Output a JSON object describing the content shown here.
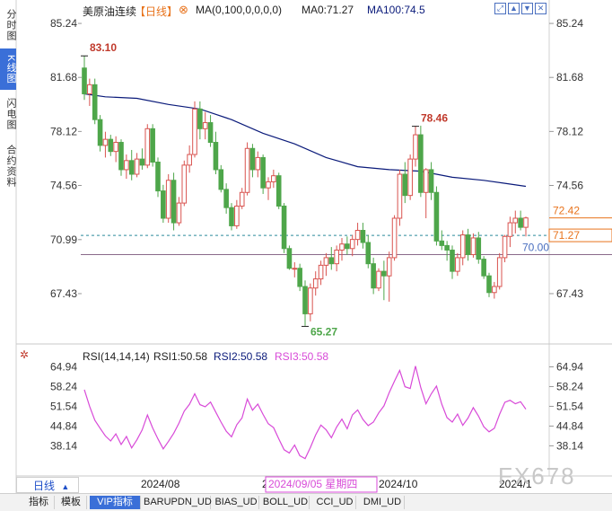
{
  "side_tabs": [
    "分时图",
    "K线图",
    "闪电图",
    "合约资料"
  ],
  "header": {
    "symbol": "美原油连续",
    "period_tag": "【日线】",
    "settings_glyph": "⊗",
    "ma_params": "MA(0,100,0,0,0,0)",
    "ma0": "MA0:71.27",
    "ma100": "MA100:74.5",
    "ma100_color": "#0a1a7a"
  },
  "rsi_header": {
    "params": "RSI(14,14,14)",
    "rsi1": "RSI1:50.58",
    "rsi2": "RSI2:50.58",
    "rsi3": "RSI3:50.58",
    "rsi3_color": "#d84ad8"
  },
  "price_axis": {
    "labels": [
      "85.24",
      "81.68",
      "78.12",
      "74.56",
      "70.99",
      "67.43"
    ],
    "right_labels": [
      "85.24",
      "81.68",
      "78.12",
      "74.56",
      "67.43"
    ]
  },
  "rsi_axis": {
    "labels": [
      "64.94",
      "58.24",
      "51.54",
      "44.84",
      "38.14"
    ]
  },
  "price_tags": {
    "last": "72.42",
    "ma0": "71.27",
    "ref": "70.00",
    "last_color": "#e8731c"
  },
  "annotations": {
    "high1": "83.10",
    "high2": "78.46",
    "low1": "65.27"
  },
  "x_axis": {
    "labels": [
      "2024/08",
      "2024/10",
      "2024/1"
    ],
    "cursor_label": "2024/09/05 星期四",
    "left_fragment": "2"
  },
  "toolbar": {
    "period_label": "日线",
    "items": [
      "指标",
      "模板",
      "VIP指标",
      "BARUPDN_UD",
      "BIAS_UD",
      "BOLL_UD",
      "CCI_UD",
      "DMI_UD"
    ]
  },
  "watermark": "FX678",
  "colors": {
    "up": "#d9534f",
    "down": "#4ea64a",
    "ma100": "#0a1a7a",
    "rsi": "#d84ad8",
    "ma0_line": "#2b8a9a"
  },
  "chart_data": {
    "type": "candlestick",
    "ylim": [
      65.0,
      85.6
    ],
    "candles": [
      [
        82.3,
        83.1,
        80.2,
        80.6
      ],
      [
        80.6,
        81.6,
        79.8,
        81.2
      ],
      [
        81.2,
        81.6,
        78.6,
        78.9
      ],
      [
        78.9,
        79.2,
        76.8,
        77.2
      ],
      [
        77.2,
        78.1,
        76.4,
        77.6
      ],
      [
        77.6,
        77.9,
        76.5,
        76.8
      ],
      [
        76.8,
        77.8,
        76.1,
        77.4
      ],
      [
        77.4,
        77.6,
        75.2,
        75.6
      ],
      [
        75.6,
        76.6,
        75.0,
        76.2
      ],
      [
        76.2,
        76.9,
        74.9,
        75.3
      ],
      [
        75.3,
        76.7,
        75.1,
        76.3
      ],
      [
        76.3,
        77.0,
        75.6,
        75.9
      ],
      [
        75.9,
        78.6,
        75.7,
        78.3
      ],
      [
        78.3,
        78.6,
        75.8,
        76.1
      ],
      [
        76.1,
        76.4,
        73.8,
        74.2
      ],
      [
        74.2,
        74.6,
        72.1,
        72.4
      ],
      [
        72.4,
        75.3,
        72.1,
        74.9
      ],
      [
        74.9,
        75.4,
        71.6,
        72.1
      ],
      [
        72.1,
        73.8,
        71.9,
        73.4
      ],
      [
        73.4,
        76.2,
        73.2,
        75.9
      ],
      [
        75.9,
        77.2,
        75.4,
        76.6
      ],
      [
        76.6,
        80.1,
        76.4,
        79.6
      ],
      [
        79.6,
        80.1,
        77.6,
        78.3
      ],
      [
        78.3,
        79.4,
        77.6,
        78.7
      ],
      [
        78.7,
        79.2,
        77.1,
        77.4
      ],
      [
        77.4,
        78.1,
        75.3,
        75.6
      ],
      [
        75.6,
        75.9,
        74.1,
        74.3
      ],
      [
        74.3,
        74.7,
        72.7,
        73.1
      ],
      [
        73.1,
        73.4,
        71.6,
        71.9
      ],
      [
        71.9,
        73.6,
        71.7,
        73.2
      ],
      [
        73.2,
        74.4,
        73.0,
        74.1
      ],
      [
        74.1,
        77.4,
        73.9,
        77.0
      ],
      [
        77.0,
        77.3,
        75.1,
        75.6
      ],
      [
        75.6,
        76.8,
        75.1,
        76.4
      ],
      [
        76.4,
        76.6,
        74.0,
        74.4
      ],
      [
        74.4,
        75.1,
        73.6,
        74.8
      ],
      [
        74.8,
        75.6,
        74.4,
        75.2
      ],
      [
        75.2,
        75.4,
        73.0,
        73.2
      ],
      [
        73.2,
        73.4,
        70.1,
        70.4
      ],
      [
        70.4,
        70.6,
        69.0,
        69.1
      ],
      [
        69.1,
        69.5,
        68.5,
        69.1
      ],
      [
        69.1,
        69.4,
        67.6,
        67.9
      ],
      [
        67.9,
        68.3,
        65.3,
        66.1
      ],
      [
        66.1,
        68.1,
        65.6,
        67.8
      ],
      [
        67.8,
        68.9,
        67.3,
        68.4
      ],
      [
        68.4,
        69.6,
        68.0,
        69.3
      ],
      [
        69.3,
        70.1,
        68.6,
        69.8
      ],
      [
        69.8,
        70.5,
        69.0,
        69.4
      ],
      [
        69.4,
        70.6,
        68.9,
        70.3
      ],
      [
        70.3,
        71.1,
        69.6,
        70.7
      ],
      [
        70.7,
        71.2,
        70.0,
        70.4
      ],
      [
        70.4,
        71.3,
        69.9,
        71.0
      ],
      [
        71.0,
        72.1,
        70.6,
        71.6
      ],
      [
        71.6,
        72.1,
        70.4,
        70.8
      ],
      [
        70.8,
        71.3,
        69.1,
        69.4
      ],
      [
        69.4,
        69.8,
        67.4,
        67.8
      ],
      [
        67.8,
        69.1,
        67.6,
        68.9
      ],
      [
        68.9,
        69.6,
        67.0,
        68.6
      ],
      [
        68.6,
        70.2,
        66.9,
        69.8
      ],
      [
        69.8,
        72.6,
        69.6,
        72.4
      ],
      [
        72.4,
        75.6,
        71.9,
        75.3
      ],
      [
        75.3,
        76.1,
        73.4,
        73.9
      ],
      [
        73.9,
        76.6,
        73.6,
        76.3
      ],
      [
        76.3,
        78.5,
        75.8,
        77.9
      ],
      [
        77.9,
        78.5,
        73.8,
        74.1
      ],
      [
        74.1,
        75.7,
        72.4,
        75.6
      ],
      [
        75.6,
        76.1,
        73.6,
        74.1
      ],
      [
        74.1,
        74.5,
        70.6,
        70.9
      ],
      [
        70.9,
        71.6,
        70.3,
        70.6
      ],
      [
        70.6,
        70.9,
        69.6,
        70.3
      ],
      [
        70.3,
        70.6,
        68.4,
        68.9
      ],
      [
        68.9,
        70.1,
        68.6,
        69.8
      ],
      [
        69.8,
        71.6,
        69.3,
        71.3
      ],
      [
        71.3,
        71.7,
        69.6,
        70.0
      ],
      [
        70.0,
        71.4,
        69.8,
        71.1
      ],
      [
        71.1,
        71.5,
        69.4,
        69.7
      ],
      [
        69.7,
        69.9,
        68.4,
        68.6
      ],
      [
        68.6,
        68.8,
        67.2,
        67.5
      ],
      [
        67.5,
        68.2,
        67.1,
        67.9
      ],
      [
        67.9,
        70.1,
        67.7,
        69.8
      ],
      [
        69.8,
        71.3,
        69.5,
        71.2
      ],
      [
        71.2,
        72.5,
        70.5,
        72.1
      ],
      [
        72.1,
        72.9,
        71.4,
        72.4
      ],
      [
        72.4,
        72.9,
        71.6,
        71.8
      ],
      [
        71.8,
        72.5,
        71.2,
        72.42
      ]
    ],
    "ma100": [
      [
        0,
        80.6
      ],
      [
        4,
        80.4
      ],
      [
        10,
        80.3
      ],
      [
        16,
        79.9
      ],
      [
        22,
        79.6
      ],
      [
        28,
        78.9
      ],
      [
        34,
        78.0
      ],
      [
        40,
        77.3
      ],
      [
        46,
        76.4
      ],
      [
        52,
        75.8
      ],
      [
        58,
        75.6
      ],
      [
        64,
        75.5
      ],
      [
        70,
        75.1
      ],
      [
        76,
        74.9
      ],
      [
        80,
        74.7
      ],
      [
        84,
        74.5
      ]
    ],
    "ma0": 71.27,
    "ref_line": 70.0,
    "rsi": {
      "ylim": [
        34.0,
        66.0
      ],
      "values": [
        57.2,
        51.5,
        46.8,
        44.1,
        41.5,
        39.8,
        42.2,
        38.6,
        41.3,
        37.4,
        40.2,
        43.5,
        48.6,
        44.2,
        40.5,
        37.1,
        39.6,
        42.4,
        45.8,
        49.9,
        52.2,
        55.8,
        52.1,
        51.4,
        53.0,
        49.6,
        46.2,
        43.1,
        41.2,
        45.3,
        47.6,
        54.0,
        50.2,
        52.3,
        48.8,
        45.6,
        44.3,
        40.5,
        36.8,
        35.7,
        38.4,
        34.8,
        33.8,
        37.6,
        41.8,
        45.2,
        43.6,
        40.9,
        44.5,
        47.2,
        43.9,
        48.6,
        50.3,
        47.1,
        45.0,
        46.2,
        49.3,
        51.7,
        56.2,
        60.1,
        63.7,
        58.2,
        57.6,
        65.2,
        57.9,
        52.4,
        55.8,
        58.4,
        52.3,
        47.7,
        46.2,
        48.9,
        45.1,
        47.6,
        51.1,
        48.2,
        44.6,
        42.9,
        44.1,
        48.8,
        52.9,
        53.6,
        52.4,
        53.1,
        50.58
      ]
    }
  }
}
